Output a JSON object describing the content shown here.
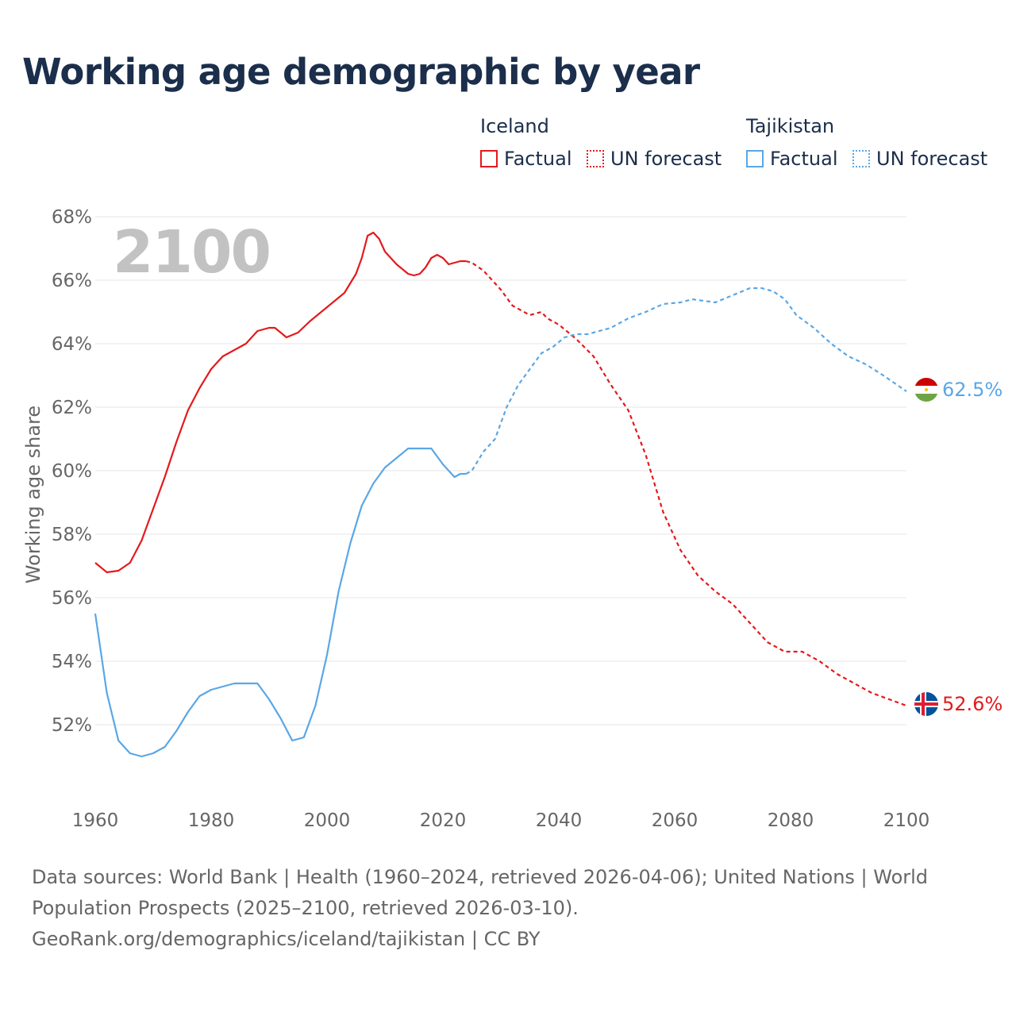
{
  "title": "Working age demographic by year",
  "legend": {
    "groups": [
      {
        "name": "Iceland",
        "factual_label": "Factual",
        "forecast_label": "UN forecast",
        "color": "#e31a1c"
      },
      {
        "name": "Tajikistan",
        "factual_label": "Factual",
        "forecast_label": "UN forecast",
        "color": "#5aa7e6"
      }
    ]
  },
  "chart_data": {
    "type": "line",
    "title": "Working age demographic by year",
    "year_label": "2100",
    "ylabel": "Working age share",
    "xlabel": "",
    "xlim": [
      1960,
      2100
    ],
    "ylim": [
      50,
      68
    ],
    "x_ticks": [
      1960,
      1980,
      2000,
      2020,
      2040,
      2060,
      2080,
      2100
    ],
    "y_ticks": [
      52,
      54,
      56,
      58,
      60,
      62,
      64,
      66,
      68
    ],
    "y_tick_labels": [
      "52%",
      "54%",
      "56%",
      "58%",
      "60%",
      "62%",
      "64%",
      "66%",
      "68%"
    ],
    "factual_end_year": 2024,
    "series": [
      {
        "name": "Iceland",
        "color": "#e31a1c",
        "end_label": "52.6%",
        "flag": "iceland-flag-icon",
        "x": [
          1960,
          1962,
          1964,
          1966,
          1968,
          1970,
          1972,
          1974,
          1976,
          1978,
          1980,
          1982,
          1984,
          1986,
          1988,
          1990,
          1991,
          1993,
          1995,
          1997,
          1999,
          2001,
          2003,
          2005,
          2006,
          2007,
          2008,
          2009,
          2010,
          2012,
          2014,
          2015,
          2016,
          2017,
          2018,
          2019,
          2020,
          2021,
          2022,
          2023,
          2024,
          2025,
          2027,
          2030,
          2032,
          2035,
          2037,
          2038,
          2040,
          2043,
          2046,
          2049,
          2052,
          2055,
          2058,
          2061,
          2064,
          2067,
          2070,
          2073,
          2076,
          2079,
          2082,
          2085,
          2088,
          2091,
          2094,
          2097,
          2100
        ],
        "y": [
          57.1,
          56.8,
          56.85,
          57.1,
          57.8,
          58.8,
          59.8,
          60.9,
          61.9,
          62.6,
          63.2,
          63.6,
          63.8,
          64.0,
          64.4,
          64.5,
          64.5,
          64.2,
          64.35,
          64.7,
          65.0,
          65.3,
          65.6,
          66.2,
          66.7,
          67.4,
          67.5,
          67.3,
          66.9,
          66.5,
          66.2,
          66.15,
          66.2,
          66.4,
          66.7,
          66.8,
          66.7,
          66.5,
          66.55,
          66.6,
          66.6,
          66.55,
          66.3,
          65.7,
          65.2,
          64.9,
          65.0,
          64.8,
          64.6,
          64.15,
          63.6,
          62.7,
          61.9,
          60.5,
          58.7,
          57.5,
          56.7,
          56.2,
          55.8,
          55.2,
          54.6,
          54.3,
          54.3,
          54.0,
          53.6,
          53.3,
          53.0,
          52.8,
          52.6
        ]
      },
      {
        "name": "Tajikistan",
        "color": "#5aa7e6",
        "end_label": "62.5%",
        "flag": "tajikistan-flag-icon",
        "x": [
          1960,
          1962,
          1964,
          1966,
          1968,
          1970,
          1972,
          1974,
          1976,
          1978,
          1980,
          1982,
          1984,
          1986,
          1988,
          1990,
          1992,
          1994,
          1996,
          1998,
          2000,
          2002,
          2004,
          2006,
          2008,
          2010,
          2012,
          2014,
          2016,
          2018,
          2020,
          2022,
          2023,
          2024,
          2025,
          2027,
          2029,
          2031,
          2033,
          2035,
          2037,
          2039,
          2041,
          2043,
          2045,
          2047,
          2049,
          2052,
          2055,
          2058,
          2061,
          2063,
          2065,
          2067,
          2069,
          2071,
          2073,
          2075,
          2077,
          2079,
          2081,
          2084,
          2087,
          2090,
          2093,
          2096,
          2100
        ],
        "y": [
          55.5,
          53.0,
          51.5,
          51.1,
          51.0,
          51.1,
          51.3,
          51.8,
          52.4,
          52.9,
          53.1,
          53.2,
          53.3,
          53.3,
          53.3,
          52.8,
          52.2,
          51.5,
          51.6,
          52.6,
          54.2,
          56.2,
          57.7,
          58.9,
          59.6,
          60.1,
          60.4,
          60.7,
          60.7,
          60.7,
          60.2,
          59.8,
          59.9,
          59.9,
          60.0,
          60.6,
          61.0,
          62.0,
          62.7,
          63.2,
          63.7,
          63.9,
          64.2,
          64.3,
          64.3,
          64.4,
          64.5,
          64.8,
          65.0,
          65.25,
          65.3,
          65.4,
          65.35,
          65.3,
          65.45,
          65.6,
          65.75,
          65.75,
          65.65,
          65.4,
          64.9,
          64.5,
          64.0,
          63.6,
          63.35,
          63.0,
          62.5
        ]
      }
    ]
  },
  "footer": {
    "line1": "Data sources: World Bank | Health (1960–2024, retrieved 2026-04-06); United Nations | World",
    "line2": "Population Prospects (2025–2100, retrieved 2026-03-10).",
    "line3": "GeoRank.org/demographics/iceland/tajikistan | CC BY"
  }
}
